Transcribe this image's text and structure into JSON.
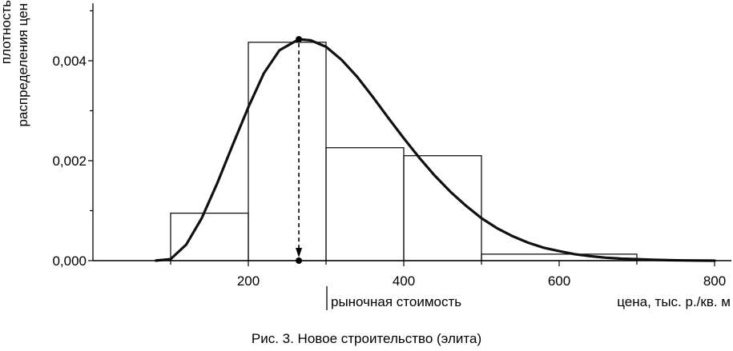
{
  "caption": "Рис. 3. Новое строительство (элита)",
  "chart_data": {
    "type": "bar",
    "title": "",
    "xlabel": "цена, тыс. р./кв. м",
    "ylabel_lines": [
      "плотность",
      "распределения цен"
    ],
    "x_ticks": [
      {
        "value": 200,
        "label": "200"
      },
      {
        "value": 400,
        "label": "400"
      },
      {
        "value": 600,
        "label": "600"
      },
      {
        "value": 800,
        "label": "800"
      }
    ],
    "y_ticks": [
      {
        "value": 0.0,
        "label": "0,000"
      },
      {
        "value": 0.002,
        "label": "0,002"
      },
      {
        "value": 0.004,
        "label": "0,004"
      }
    ],
    "xlim": [
      0,
      820
    ],
    "ylim": [
      0,
      0.00515
    ],
    "histogram": [
      {
        "from": 100,
        "to": 200,
        "value": 0.00095
      },
      {
        "from": 200,
        "to": 300,
        "value": 0.00437
      },
      {
        "from": 300,
        "to": 400,
        "value": 0.00226
      },
      {
        "from": 400,
        "to": 500,
        "value": 0.0021
      },
      {
        "from": 500,
        "to": 700,
        "value": 0.00013
      }
    ],
    "density_curve": {
      "x": [
        80,
        100,
        120,
        140,
        160,
        180,
        200,
        220,
        240,
        265,
        280,
        300,
        320,
        340,
        360,
        380,
        400,
        420,
        440,
        460,
        480,
        500,
        520,
        540,
        560,
        580,
        600,
        620,
        640,
        660,
        680,
        700,
        720,
        740,
        760,
        780,
        800
      ],
      "y": [
        0.0,
        3e-05,
        0.00032,
        0.00085,
        0.00155,
        0.00232,
        0.00307,
        0.00375,
        0.00421,
        0.00443,
        0.00441,
        0.00428,
        0.00402,
        0.00368,
        0.00328,
        0.00286,
        0.00245,
        0.00206,
        0.0017,
        0.00138,
        0.0011,
        0.00085,
        0.00065,
        0.00049,
        0.00036,
        0.00026,
        0.00019,
        0.00013,
        9e-05,
        6e-05,
        4e-05,
        3e-05,
        2e-05,
        1e-05,
        5e-06,
        2e-06,
        0.0
      ]
    },
    "market_value": {
      "x": 265,
      "y": 0.00443,
      "label": "рыночная стоимость"
    },
    "grid": false,
    "legend": "none"
  }
}
